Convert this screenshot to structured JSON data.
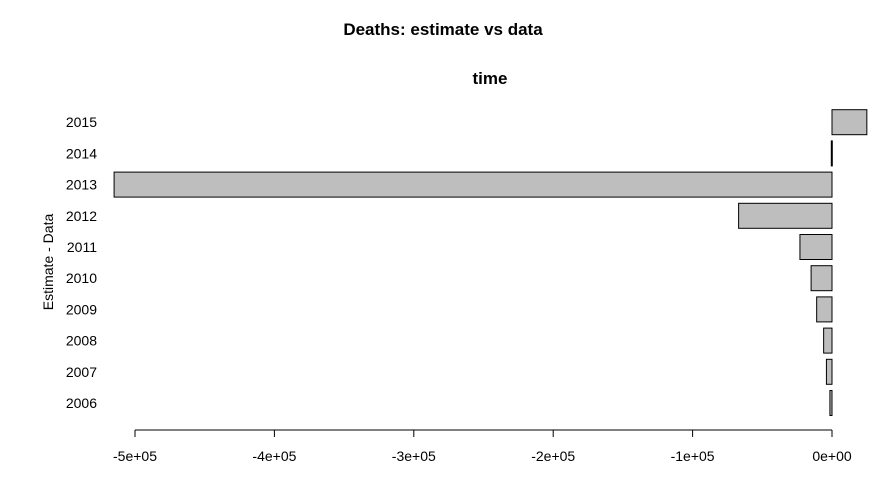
{
  "chart_data": {
    "type": "bar",
    "orientation": "horizontal",
    "title": "Deaths: estimate vs data",
    "subtitle": "time",
    "xlabel": "",
    "ylabel": "Estimate - Data",
    "categories": [
      "2006",
      "2007",
      "2008",
      "2009",
      "2010",
      "2011",
      "2012",
      "2013",
      "2014",
      "2015"
    ],
    "values": [
      -1500,
      -4000,
      -6000,
      -11000,
      -15000,
      -23000,
      -67000,
      -515000,
      -500,
      25000
    ],
    "xlim": [
      -520000,
      30000
    ],
    "xticks": [
      -500000,
      -400000,
      -300000,
      -200000,
      -100000,
      0
    ],
    "xtick_labels": [
      "-5e+05",
      "-4e+05",
      "-3e+05",
      "-2e+05",
      "-1e+05",
      "0e+00"
    ],
    "grid": false,
    "legend": "none",
    "colors": {
      "bar_fill": "#bebebe",
      "bar_stroke": "#000000"
    }
  }
}
